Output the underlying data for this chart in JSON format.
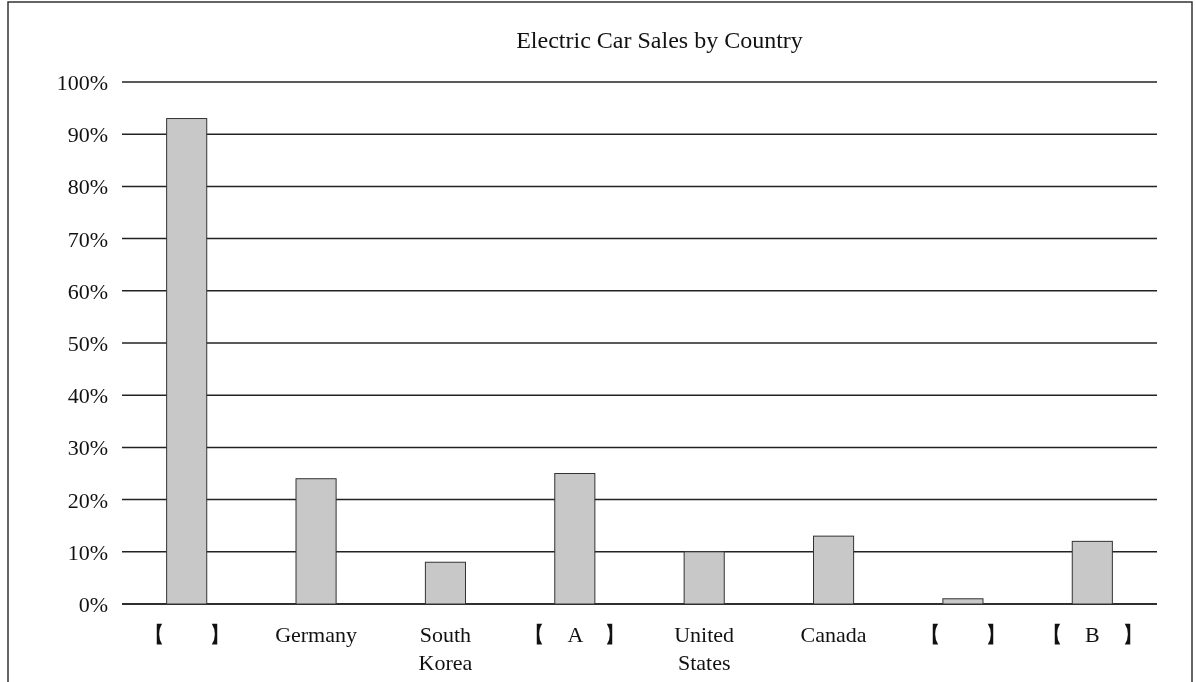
{
  "chart_data": {
    "type": "bar",
    "title": "Electric Car Sales by Country",
    "categories": [
      "【　　】",
      "Germany",
      "South Korea",
      "【　A　】",
      "United States",
      "Canada",
      "【　　】",
      "【　B　】"
    ],
    "values": [
      93,
      24,
      8,
      25,
      10,
      13,
      1,
      12
    ],
    "color": "#c8c8c8",
    "ylim": [
      0,
      100
    ],
    "yticks": [
      {
        "value": 0,
        "label": "0%"
      },
      {
        "value": 10,
        "label": "10%"
      },
      {
        "value": 20,
        "label": "20%"
      },
      {
        "value": 30,
        "label": "30%"
      },
      {
        "value": 40,
        "label": "40%"
      },
      {
        "value": 50,
        "label": "50%"
      },
      {
        "value": 60,
        "label": "60%"
      },
      {
        "value": 70,
        "label": "70%"
      },
      {
        "value": 80,
        "label": "80%"
      },
      {
        "value": 90,
        "label": "90%"
      },
      {
        "value": 100,
        "label": "100%"
      }
    ],
    "grid": "y"
  }
}
